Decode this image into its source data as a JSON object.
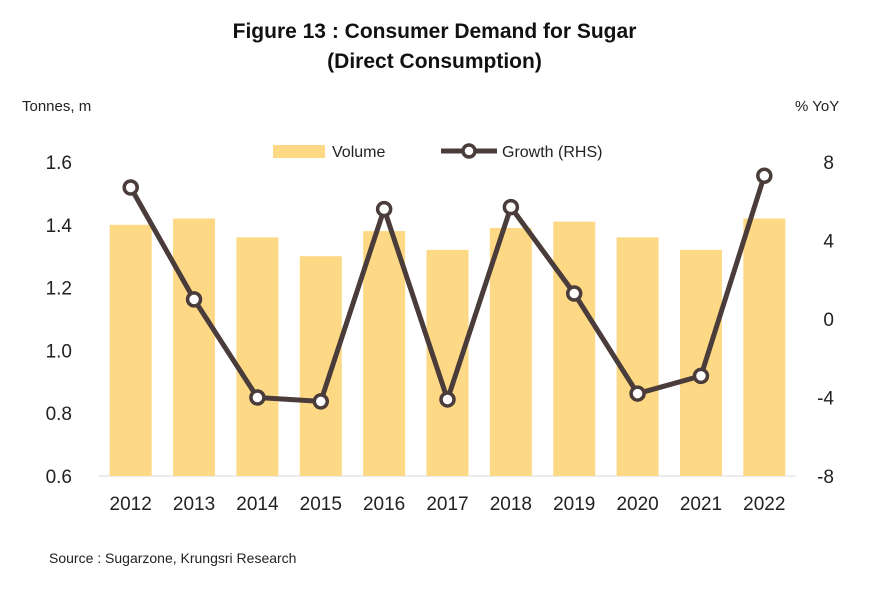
{
  "chart_data": {
    "type": "bar",
    "title_line1": "Figure 13 : Consumer Demand for Sugar",
    "title_line2": "(Direct Consumption)",
    "ylabel_left": "Tonnes, m",
    "ylabel_right": "% YoY",
    "categories": [
      "2012",
      "2013",
      "2014",
      "2015",
      "2016",
      "2017",
      "2018",
      "2019",
      "2020",
      "2021",
      "2022"
    ],
    "series": [
      {
        "name": "Volume",
        "type": "bar",
        "axis": "left",
        "values": [
          1.4,
          1.42,
          1.36,
          1.3,
          1.38,
          1.32,
          1.39,
          1.41,
          1.36,
          1.32,
          1.42
        ]
      },
      {
        "name": "Growth (RHS)",
        "type": "line",
        "axis": "right",
        "values": [
          6.7,
          1.0,
          -4.0,
          -4.2,
          5.6,
          -4.1,
          5.7,
          1.3,
          -3.8,
          -2.9,
          7.3
        ]
      }
    ],
    "ylim_left": [
      0.6,
      1.6
    ],
    "ylim_right": [
      -8,
      8
    ],
    "yticks_left": [
      "1.6",
      "1.4",
      "1.2",
      "1.0",
      "0.8",
      "0.6"
    ],
    "yticks_right": [
      "8",
      "4",
      "0",
      "-4",
      "-8"
    ],
    "legend_position": "top-center",
    "grid": false,
    "colors": {
      "bar": "#FDD985",
      "line": "#4A3C3A",
      "marker_fill": "#FFFFFF"
    }
  },
  "source": "Source : Sugarzone, Krungsri Research"
}
